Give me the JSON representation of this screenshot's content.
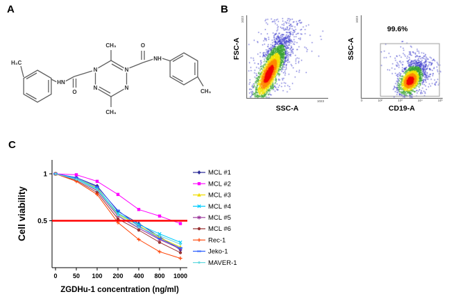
{
  "panels": {
    "a": {
      "label": "A",
      "molecule": {
        "h3c": "H₃C",
        "hn_left": "HN",
        "o_left": "O",
        "n": "N",
        "ch3_top": "CH₃",
        "ch3_bottom": "CH₃",
        "o_right": "O",
        "nh_right": "NH",
        "ch3_right": "CH₃"
      }
    },
    "b": {
      "label": "B",
      "plots": [
        {
          "ylabel": "FSC-A",
          "xlabel": "SSC-A",
          "y_max_tick": "1023",
          "x_max_tick": "1023"
        },
        {
          "ylabel": "SSC-A",
          "xlabel": "CD19-A",
          "y_max_tick": "1023",
          "gate_label": "99.6%",
          "x_ticks": [
            "0",
            "10²",
            "10³",
            "10⁴",
            "10⁵"
          ]
        }
      ]
    },
    "c": {
      "label": "C"
    }
  },
  "chart_data": {
    "type": "line",
    "title": "",
    "xlabel": "ZGDHu-1 concentration (ng/ml)",
    "ylabel": "Cell viability",
    "categories": [
      "0",
      "50",
      "100",
      "200",
      "400",
      "800",
      "1000"
    ],
    "y_ticks": [
      {
        "label": "1",
        "value": 1
      },
      {
        "label": "0.5",
        "value": 0.5
      }
    ],
    "ylim": [
      0,
      1.05
    ],
    "grid": false,
    "legend_position": "right",
    "threshold_line": {
      "value": 0.5,
      "color": "#ff0000"
    },
    "series": [
      {
        "name": "MCL #1",
        "color": "#2e2e99",
        "marker": "diamond",
        "values": [
          1,
          0.96,
          0.87,
          0.6,
          0.47,
          0.33,
          0.19
        ]
      },
      {
        "name": "MCL #2",
        "color": "#ff00ff",
        "marker": "square",
        "values": [
          1,
          0.99,
          0.92,
          0.78,
          0.62,
          0.55,
          0.47
        ]
      },
      {
        "name": "MCL #3",
        "color": "#f0dc00",
        "marker": "triangle",
        "values": [
          1,
          0.95,
          0.85,
          0.57,
          0.45,
          0.32,
          0.22
        ]
      },
      {
        "name": "MCL #4",
        "color": "#00ccff",
        "marker": "x",
        "values": [
          1,
          0.95,
          0.84,
          0.58,
          0.46,
          0.36,
          0.27
        ]
      },
      {
        "name": "MCL #5",
        "color": "#993399",
        "marker": "asterisk",
        "values": [
          1,
          0.94,
          0.82,
          0.55,
          0.42,
          0.3,
          0.2
        ]
      },
      {
        "name": "MCL #6",
        "color": "#993333",
        "marker": "circle",
        "values": [
          1,
          0.93,
          0.8,
          0.52,
          0.4,
          0.27,
          0.16
        ]
      },
      {
        "name": "Rec-1",
        "color": "#ff4000",
        "marker": "plus",
        "values": [
          1,
          0.92,
          0.78,
          0.48,
          0.3,
          0.17,
          0.1
        ]
      },
      {
        "name": "Jeko-1",
        "color": "#3366ff",
        "marker": "dash",
        "values": [
          1,
          0.96,
          0.86,
          0.61,
          0.44,
          0.31,
          0.21
        ]
      },
      {
        "name": "MAVER-1",
        "color": "#66d9e0",
        "marker": "dot",
        "values": [
          1,
          0.94,
          0.83,
          0.56,
          0.43,
          0.34,
          0.25
        ]
      }
    ]
  }
}
